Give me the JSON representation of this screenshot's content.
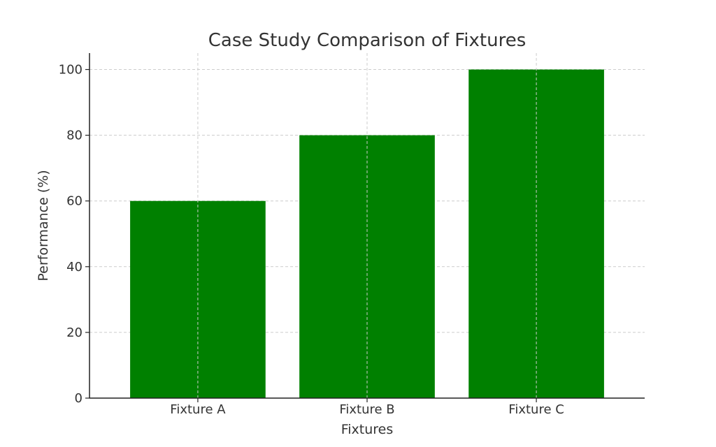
{
  "chart_data": {
    "type": "bar",
    "title": "Case Study Comparison of Fixtures",
    "xlabel": "Fixtures",
    "ylabel": "Performance (%)",
    "categories": [
      "Fixture A",
      "Fixture B",
      "Fixture C"
    ],
    "values": [
      60,
      80,
      100
    ],
    "ylim": [
      0,
      105
    ],
    "yticks": [
      0,
      20,
      40,
      60,
      80,
      100
    ],
    "grid": true,
    "colors": {
      "bar": "#008000"
    }
  }
}
